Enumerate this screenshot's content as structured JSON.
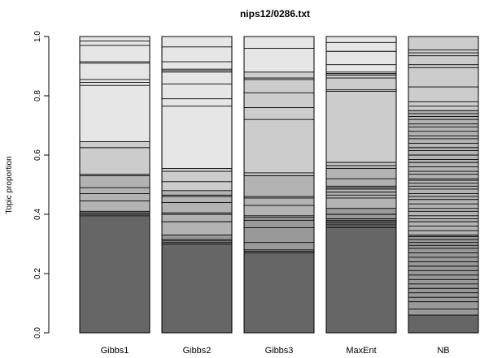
{
  "chart_data": {
    "type": "bar",
    "stacked": true,
    "title": "nips12/0286.txt",
    "xlabel": "",
    "ylabel": "Topic proportion",
    "ylim": [
      0,
      1
    ],
    "yticks": [
      "0.0",
      "0.2",
      "0.4",
      "0.6",
      "0.8",
      "1.0"
    ],
    "categories": [
      "Gibbs1",
      "Gibbs2",
      "Gibbs3",
      "MaxEnt",
      "NB"
    ],
    "shade_colors": [
      "#666666",
      "#999999",
      "#b3b3b3",
      "#cccccc",
      "#e6e6e6"
    ],
    "bars": [
      {
        "label": "Gibbs1",
        "bands": [
          [
            0,
            0.395
          ],
          [
            0.395,
            0.41
          ],
          [
            0.41,
            0.535
          ],
          [
            0.535,
            0.645
          ],
          [
            0.645,
            0.845
          ],
          [
            0.845,
            1.0
          ]
        ],
        "boundaries": [
          0.395,
          0.4,
          0.405,
          0.41,
          0.445,
          0.47,
          0.49,
          0.53,
          0.535,
          0.625,
          0.645,
          0.835,
          0.845,
          0.855,
          0.91,
          0.915,
          0.97,
          0.985
        ]
      },
      {
        "label": "Gibbs2",
        "bands": [
          [
            0,
            0.3
          ],
          [
            0.3,
            0.33
          ],
          [
            0.33,
            0.48
          ],
          [
            0.48,
            0.555
          ],
          [
            0.555,
            0.885
          ],
          [
            0.885,
            1.0
          ]
        ],
        "boundaries": [
          0.3,
          0.305,
          0.31,
          0.315,
          0.33,
          0.375,
          0.4,
          0.405,
          0.44,
          0.46,
          0.465,
          0.48,
          0.51,
          0.545,
          0.555,
          0.765,
          0.79,
          0.84,
          0.88,
          0.885,
          0.89,
          0.915,
          0.965
        ]
      },
      {
        "label": "Gibbs3",
        "bands": [
          [
            0,
            0.27
          ],
          [
            0.27,
            0.39
          ],
          [
            0.39,
            0.535
          ],
          [
            0.535,
            0.88
          ],
          [
            0.88,
            1.0
          ]
        ],
        "boundaries": [
          0.27,
          0.275,
          0.28,
          0.305,
          0.355,
          0.38,
          0.39,
          0.395,
          0.43,
          0.455,
          0.46,
          0.53,
          0.54,
          0.72,
          0.76,
          0.81,
          0.855,
          0.86,
          0.88,
          0.96
        ]
      },
      {
        "label": "MaxEnt",
        "bands": [
          [
            0,
            0.355
          ],
          [
            0.355,
            0.42
          ],
          [
            0.42,
            0.565
          ],
          [
            0.565,
            0.875
          ],
          [
            0.875,
            1.0
          ]
        ],
        "boundaries": [
          0.355,
          0.36,
          0.365,
          0.37,
          0.375,
          0.38,
          0.385,
          0.4,
          0.42,
          0.455,
          0.465,
          0.475,
          0.485,
          0.49,
          0.495,
          0.52,
          0.555,
          0.565,
          0.575,
          0.815,
          0.82,
          0.86,
          0.87,
          0.875,
          0.88,
          0.905,
          0.95,
          0.98
        ]
      },
      {
        "label": "NB",
        "bands": [
          [
            0,
            0.06
          ],
          [
            0.06,
            0.33
          ],
          [
            0.33,
            0.75
          ],
          [
            0.75,
            1.0
          ]
        ],
        "boundaries": [
          0.06,
          0.08,
          0.105,
          0.12,
          0.135,
          0.15,
          0.165,
          0.18,
          0.195,
          0.21,
          0.225,
          0.24,
          0.255,
          0.27,
          0.285,
          0.295,
          0.305,
          0.315,
          0.325,
          0.33,
          0.345,
          0.36,
          0.375,
          0.385,
          0.395,
          0.41,
          0.42,
          0.435,
          0.45,
          0.46,
          0.47,
          0.485,
          0.495,
          0.505,
          0.515,
          0.52,
          0.535,
          0.545,
          0.56,
          0.575,
          0.585,
          0.6,
          0.615,
          0.625,
          0.64,
          0.655,
          0.665,
          0.68,
          0.695,
          0.705,
          0.72,
          0.73,
          0.74,
          0.75,
          0.765,
          0.78,
          0.83,
          0.895,
          0.905,
          0.935,
          0.945,
          0.955
        ]
      }
    ]
  }
}
